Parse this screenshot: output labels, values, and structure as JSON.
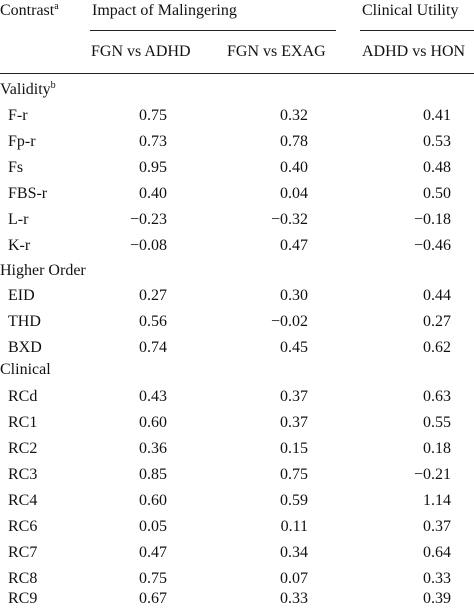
{
  "header": {
    "contrast": "Contrast",
    "contrast_note": "a",
    "group1": "Impact of Malingering",
    "group2": "Clinical Utility",
    "columns": [
      "FGN vs ADHD",
      "FGN vs EXAG",
      "ADHD vs HON"
    ]
  },
  "sections": [
    {
      "title": "Validity",
      "note": "b",
      "rows": [
        {
          "label": "F-r",
          "values": [
            "0.75",
            "0.32",
            "0.41"
          ]
        },
        {
          "label": "Fp-r",
          "values": [
            "0.73",
            "0.78",
            "0.53"
          ]
        },
        {
          "label": "Fs",
          "values": [
            "0.95",
            "0.40",
            "0.48"
          ]
        },
        {
          "label": "FBS-r",
          "values": [
            "0.40",
            "0.04",
            "0.50"
          ]
        },
        {
          "label": "L-r",
          "values": [
            "−0.23",
            "−0.32",
            "−0.18"
          ]
        },
        {
          "label": "K-r",
          "values": [
            "−0.08",
            "0.47",
            "−0.46"
          ]
        }
      ]
    },
    {
      "title": "Higher Order",
      "note": "",
      "rows": [
        {
          "label": "EID",
          "values": [
            "0.27",
            "0.30",
            "0.44"
          ]
        },
        {
          "label": "THD",
          "values": [
            "0.56",
            "−0.02",
            "0.27"
          ]
        },
        {
          "label": "BXD",
          "values": [
            "0.74",
            "0.45",
            "0.62"
          ]
        }
      ]
    },
    {
      "title": "Clinical",
      "note": "",
      "rows": [
        {
          "label": "RCd",
          "values": [
            "0.43",
            "0.37",
            "0.63"
          ]
        },
        {
          "label": "RC1",
          "values": [
            "0.60",
            "0.37",
            "0.55"
          ]
        },
        {
          "label": "RC2",
          "values": [
            "0.36",
            "0.15",
            "0.18"
          ]
        },
        {
          "label": "RC3",
          "values": [
            "0.85",
            "0.75",
            "−0.21"
          ]
        },
        {
          "label": "RC4",
          "values": [
            "0.60",
            "0.59",
            "1.14"
          ]
        },
        {
          "label": "RC6",
          "values": [
            "0.05",
            "0.11",
            "0.37"
          ]
        },
        {
          "label": "RC7",
          "values": [
            "0.47",
            "0.34",
            "0.64"
          ]
        },
        {
          "label": "RC8",
          "values": [
            "0.75",
            "0.07",
            "0.33"
          ]
        },
        {
          "label": "RC9",
          "values": [
            "0.67",
            "0.33",
            "0.39"
          ]
        }
      ]
    }
  ]
}
